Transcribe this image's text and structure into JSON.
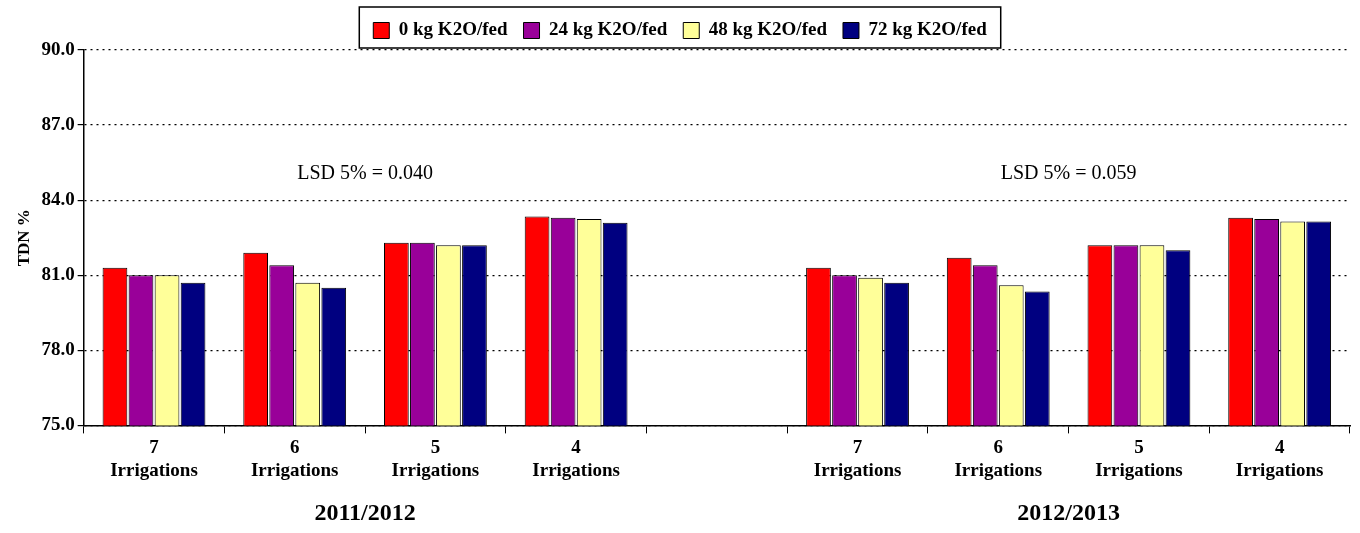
{
  "chart_data": {
    "type": "bar",
    "ylabel": "TDN %",
    "categories": [
      "7 Irrigations",
      "6 Irrigations",
      "5 Irrigations",
      "4 Irrigations",
      null,
      "7 Irrigations",
      "6 Irrigations",
      "5 Irrigations",
      "4 Irrigations"
    ],
    "series": [
      {
        "name": "0 kg K2O/fed",
        "color": "#ff0000",
        "values": [
          81.3,
          81.9,
          82.3,
          83.35,
          null,
          81.3,
          81.7,
          82.2,
          83.3
        ]
      },
      {
        "name": "24 kg K2O/fed",
        "color": "#990099",
        "values": [
          81.0,
          81.4,
          82.3,
          83.3,
          null,
          81.0,
          81.4,
          82.2,
          83.25
        ]
      },
      {
        "name": "48 kg K2O/fed",
        "color": "#ffff99",
        "values": [
          81.0,
          80.7,
          82.2,
          83.25,
          null,
          80.9,
          80.6,
          82.2,
          83.15
        ]
      },
      {
        "name": "72 kg K2O/fed",
        "color": "#000080",
        "values": [
          80.7,
          80.5,
          82.2,
          83.1,
          null,
          80.7,
          80.35,
          82.0,
          83.15
        ]
      }
    ],
    "ylim": [
      75,
      90
    ],
    "yticks": [
      {
        "value": 75,
        "label": "75.0"
      },
      {
        "value": 78,
        "label": "78.0"
      },
      {
        "value": 81,
        "label": "81.0"
      },
      {
        "value": 84,
        "label": "84.0"
      },
      {
        "value": 87,
        "label": "87.0"
      },
      {
        "value": 90,
        "label": "90.0"
      }
    ],
    "grid": "y",
    "legend": "top",
    "annotations": [
      "LSD 5% = 0.040",
      "LSD 5% = 0.059",
      "2011/2012",
      "2012/2013"
    ]
  }
}
